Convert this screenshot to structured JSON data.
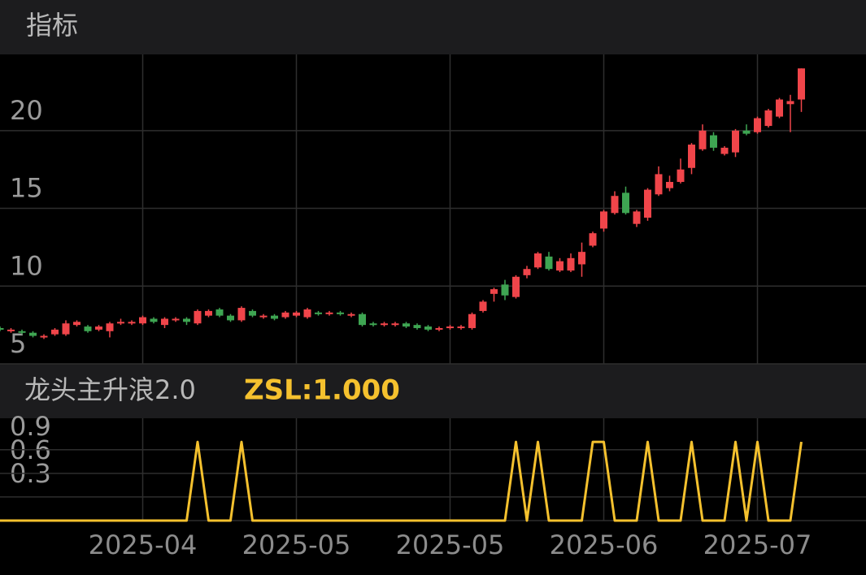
{
  "header": {
    "title": "指标"
  },
  "chart_data": [
    {
      "type": "candlestick",
      "up_color": "#f0454a",
      "down_color": "#3ea552",
      "ylim": [
        5,
        24.9
      ],
      "yticks": [
        5,
        10,
        15,
        20
      ],
      "grid": true,
      "open": [
        7.3,
        7.1,
        7.1,
        7.0,
        6.7,
        6.9,
        6.9,
        7.5,
        7.4,
        7.2,
        7.1,
        7.6,
        7.6,
        7.6,
        7.9,
        7.5,
        7.8,
        7.9,
        7.6,
        8.1,
        8.5,
        8.1,
        7.8,
        8.4,
        8.0,
        8.1,
        8.0,
        8.1,
        8.0,
        8.3,
        8.2,
        8.3,
        8.1,
        8.2,
        7.6,
        7.5,
        7.5,
        7.6,
        7.5,
        7.4,
        7.2,
        7.3,
        7.3,
        7.3,
        8.4,
        9.5,
        10.1,
        9.3,
        10.7,
        11.2,
        11.9,
        11.0,
        11.0,
        11.4,
        12.6,
        13.7,
        14.7,
        16.0,
        14.0,
        14.4,
        15.9,
        16.3,
        16.7,
        17.6,
        18.8,
        19.7,
        18.5,
        18.6,
        20.0,
        19.9,
        20.3,
        20.9,
        21.7,
        22.0
      ],
      "high": [
        7.4,
        7.3,
        7.2,
        7.1,
        6.9,
        7.3,
        7.8,
        7.8,
        7.5,
        7.5,
        7.7,
        7.9,
        7.8,
        8.1,
        8.0,
        8.0,
        8.0,
        8.0,
        8.5,
        8.5,
        8.6,
        8.2,
        8.7,
        8.5,
        8.2,
        8.2,
        8.4,
        8.4,
        8.6,
        8.4,
        8.4,
        8.4,
        8.3,
        8.3,
        7.7,
        7.7,
        7.7,
        7.7,
        7.6,
        7.5,
        7.4,
        7.5,
        7.5,
        8.3,
        9.1,
        9.9,
        10.4,
        10.7,
        11.3,
        12.2,
        12.2,
        11.8,
        12.1,
        12.8,
        13.5,
        14.9,
        16.1,
        16.4,
        14.9,
        16.3,
        17.7,
        17.1,
        18.2,
        19.2,
        20.4,
        19.9,
        19.0,
        20.1,
        20.4,
        20.9,
        21.4,
        22.1,
        22.3,
        24.0
      ],
      "low": [
        7.1,
        7.0,
        6.9,
        6.7,
        6.6,
        6.8,
        6.8,
        7.4,
        7.0,
        7.1,
        6.7,
        7.5,
        7.5,
        7.5,
        7.6,
        7.3,
        7.7,
        7.5,
        7.5,
        8.0,
        8.0,
        7.7,
        7.7,
        8.0,
        7.9,
        7.8,
        7.9,
        8.0,
        7.9,
        8.1,
        8.1,
        8.1,
        8.0,
        7.4,
        7.4,
        7.4,
        7.4,
        7.3,
        7.2,
        7.1,
        7.1,
        7.2,
        7.2,
        7.2,
        8.3,
        9.0,
        9.1,
        9.2,
        10.5,
        11.1,
        11.0,
        10.9,
        10.9,
        10.6,
        12.5,
        13.5,
        14.6,
        14.6,
        13.8,
        14.2,
        15.8,
        16.1,
        16.6,
        17.2,
        18.7,
        18.7,
        18.4,
        18.3,
        19.7,
        19.8,
        20.2,
        20.8,
        19.9,
        21.2
      ],
      "close": [
        7.2,
        7.2,
        7.0,
        6.8,
        6.8,
        7.2,
        7.6,
        7.7,
        7.1,
        7.4,
        7.6,
        7.7,
        7.7,
        8.0,
        7.7,
        7.9,
        7.9,
        7.7,
        8.4,
        8.4,
        8.1,
        7.8,
        8.6,
        8.1,
        8.1,
        7.9,
        8.3,
        8.3,
        8.5,
        8.2,
        8.3,
        8.2,
        8.2,
        7.5,
        7.5,
        7.6,
        7.6,
        7.4,
        7.3,
        7.2,
        7.3,
        7.4,
        7.4,
        8.2,
        9.0,
        9.8,
        9.4,
        10.6,
        11.1,
        12.1,
        11.1,
        11.6,
        11.8,
        12.2,
        13.4,
        14.8,
        15.8,
        14.7,
        14.8,
        16.2,
        17.2,
        16.7,
        17.5,
        19.1,
        20.0,
        18.9,
        18.9,
        20.0,
        19.8,
        20.8,
        21.3,
        22.0,
        21.9,
        24.0
      ]
    },
    {
      "type": "line",
      "title": "龙头主升浪2.0",
      "readout": "ZSL:1.000",
      "color": "#f5c12e",
      "ylim": [
        0,
        1.3
      ],
      "yticks": [
        0.3,
        0.6,
        0.9
      ],
      "grid": true,
      "categories": [
        null,
        null,
        null,
        null,
        null,
        null,
        null,
        null,
        null,
        null,
        null,
        null,
        null,
        "2025-04",
        null,
        null,
        null,
        null,
        null,
        null,
        null,
        null,
        null,
        null,
        null,
        null,
        null,
        "2025-05",
        null,
        null,
        null,
        null,
        null,
        null,
        null,
        null,
        null,
        null,
        null,
        null,
        null,
        "2025-05",
        null,
        null,
        null,
        null,
        null,
        null,
        null,
        null,
        null,
        null,
        null,
        null,
        null,
        "2025-06",
        null,
        null,
        null,
        null,
        null,
        null,
        null,
        null,
        null,
        null,
        null,
        null,
        null,
        "2025-07",
        null,
        null,
        null,
        null
      ],
      "values": [
        0,
        0,
        0,
        0,
        0,
        0,
        0,
        0,
        0,
        0,
        0,
        0,
        0,
        0,
        0,
        0,
        0,
        0,
        1,
        0,
        0,
        0,
        1,
        0,
        0,
        0,
        0,
        0,
        0,
        0,
        0,
        0,
        0,
        0,
        0,
        0,
        0,
        0,
        0,
        0,
        0,
        0,
        0,
        0,
        0,
        0,
        0,
        1,
        0,
        1,
        0,
        0,
        0,
        0,
        1,
        1,
        0,
        0,
        0,
        1,
        0,
        0,
        0,
        1,
        0,
        0,
        0,
        1,
        0,
        1,
        0,
        0,
        0,
        1
      ]
    }
  ]
}
